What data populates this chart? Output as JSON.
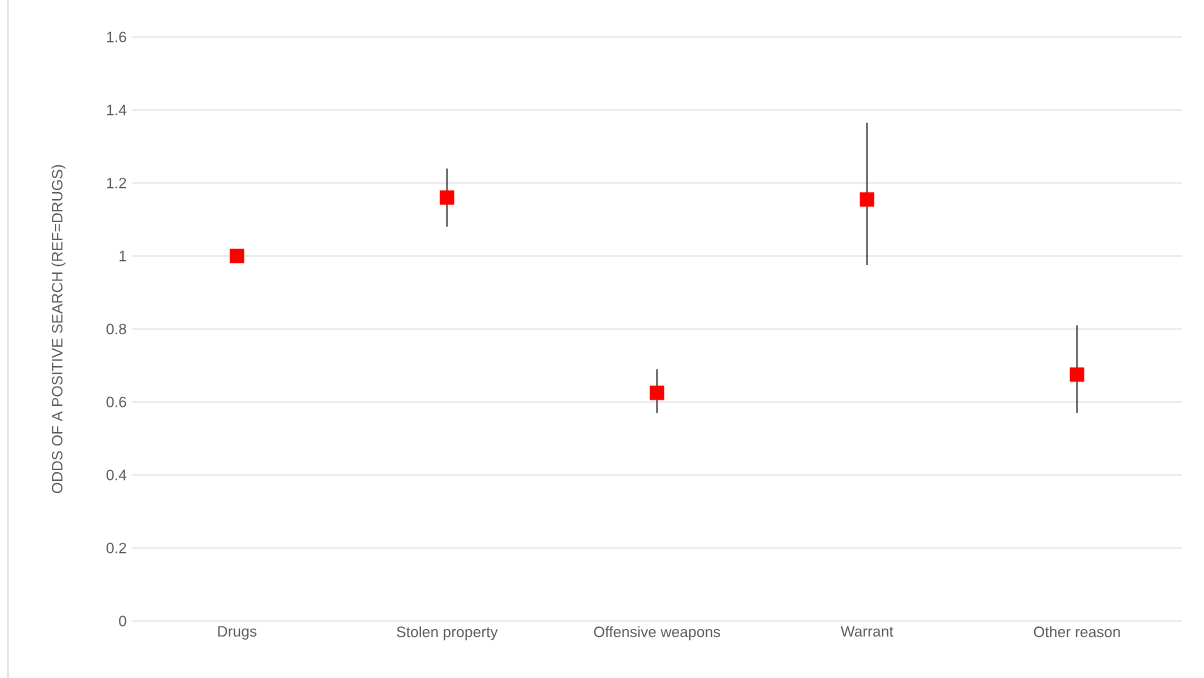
{
  "chart_data": {
    "type": "scatter",
    "ylabel": "ODDS OF A POSITIVE SEARCH (REF=DRUGS)",
    "categories": [
      "Drugs",
      "Stolen property",
      "Offensive weapons",
      "Warrant",
      "Other reason"
    ],
    "values": [
      1,
      1.16,
      0.625,
      1.155,
      0.675
    ],
    "errors": [
      null,
      [
        1.08,
        1.24
      ],
      [
        0.57,
        0.69
      ],
      [
        0.975,
        1.365
      ],
      [
        0.57,
        0.81
      ]
    ],
    "color": "#ff0000",
    "marker": "square",
    "ylim": [
      0,
      1.6
    ],
    "yticks": [
      0,
      0.2,
      0.4,
      0.6,
      0.8,
      1,
      1.2,
      1.4,
      1.6
    ],
    "grid": "y"
  }
}
